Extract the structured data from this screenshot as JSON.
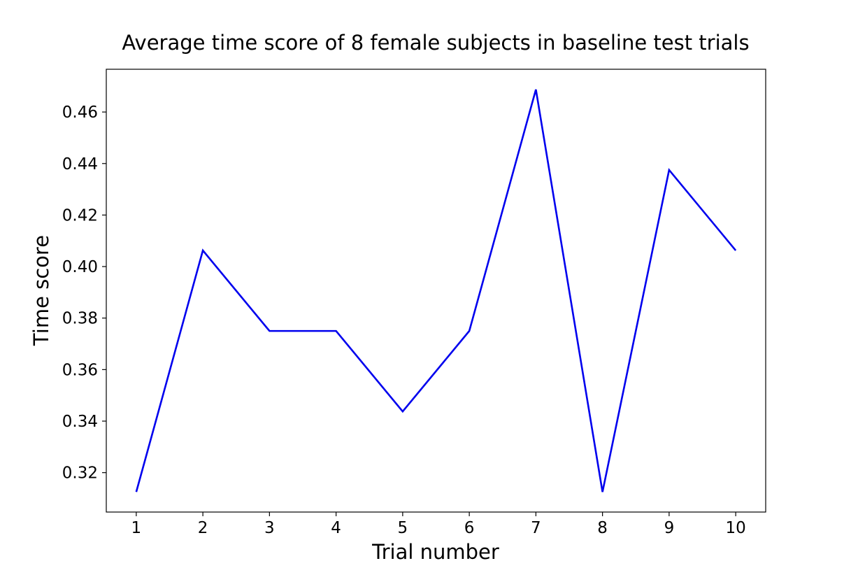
{
  "chart_data": {
    "type": "line",
    "title": "Average time score of 8 female subjects in baseline test trials",
    "xlabel": "Trial number",
    "ylabel": "Time score",
    "x": [
      1,
      2,
      3,
      4,
      5,
      6,
      7,
      8,
      9,
      10
    ],
    "series": [
      {
        "values": [
          0.3125,
          0.40625,
          0.375,
          0.375,
          0.34375,
          0.375,
          0.46875,
          0.3125,
          0.4375,
          0.40625
        ],
        "color": "#0000ee"
      }
    ],
    "xlim": [
      0.55,
      10.45
    ],
    "ylim": [
      0.3047,
      0.4766
    ],
    "xticks": [
      1,
      2,
      3,
      4,
      5,
      6,
      7,
      8,
      9,
      10
    ],
    "yticks": [
      0.32,
      0.34,
      0.36,
      0.38,
      0.4,
      0.42,
      0.44,
      0.46
    ],
    "ytick_labels": [
      "0.32",
      "0.34",
      "0.36",
      "0.38",
      "0.40",
      "0.42",
      "0.44",
      "0.46"
    ],
    "grid": false,
    "legend": false
  }
}
